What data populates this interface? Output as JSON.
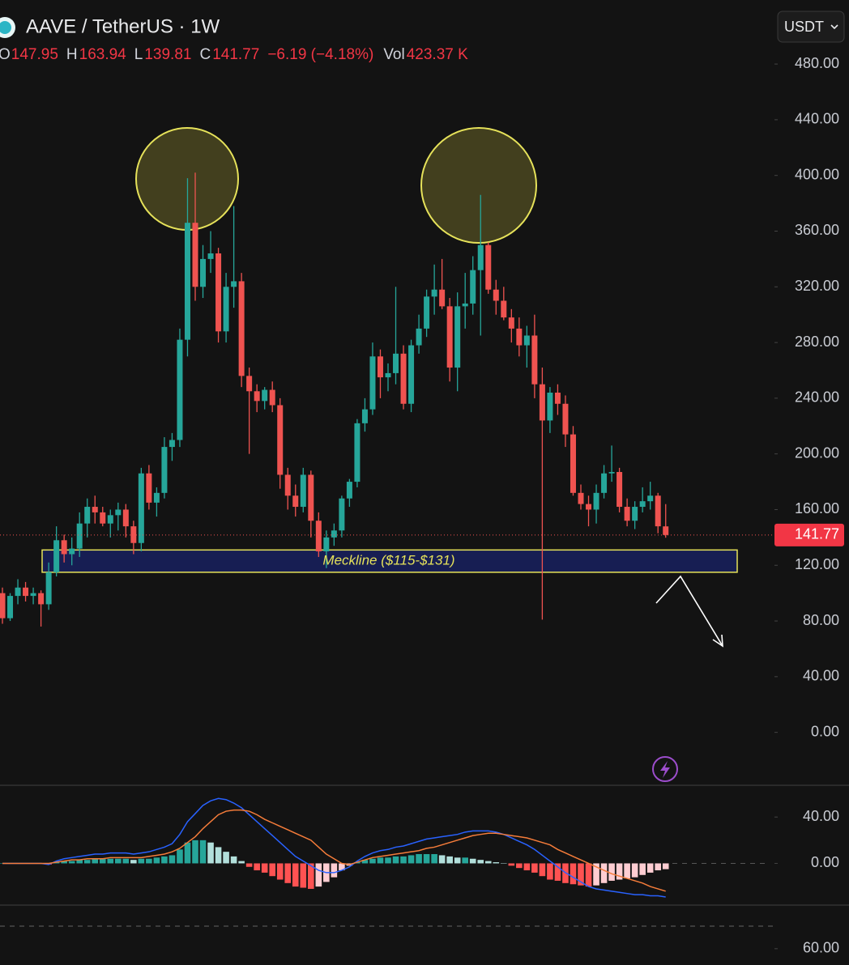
{
  "chart_data": [
    {
      "type": "candlestick",
      "title": "AAVE / TetherUS · 1W",
      "currency": "USDT",
      "legend_labels": {
        "open": "O",
        "high": "H",
        "low": "L",
        "close": "C",
        "volume": "Vol"
      },
      "change": "−6.19 (−4.18%)",
      "volume": "423.37 K",
      "up_color": "#26a69a",
      "down_color": "#ef5350",
      "ylim": [
        -38,
        526
      ],
      "yticks": [
        {
          "value": 0,
          "label": "0.00"
        },
        {
          "value": 40,
          "label": "40.00"
        },
        {
          "value": 80,
          "label": "80.00"
        },
        {
          "value": 120,
          "label": "120.00"
        },
        {
          "value": 160,
          "label": "160.00"
        },
        {
          "value": 200,
          "label": "200.00"
        },
        {
          "value": 240,
          "label": "240.00"
        },
        {
          "value": 280,
          "label": "280.00"
        },
        {
          "value": 320,
          "label": "320.00"
        },
        {
          "value": 360,
          "label": "360.00"
        },
        {
          "value": 400,
          "label": "400.00"
        },
        {
          "value": 440,
          "label": "440.00"
        },
        {
          "value": 480,
          "label": "480.00"
        }
      ],
      "annotations": [
        {
          "text": "Meckline ($115-$131)",
          "zone": [
            115,
            131
          ]
        }
      ],
      "open": [
        100,
        82,
        98,
        104,
        98,
        100,
        92,
        115,
        138,
        128,
        132,
        150,
        162,
        158,
        150,
        156,
        160,
        148,
        136,
        186,
        165,
        172,
        205,
        210,
        282,
        366,
        320,
        340,
        344,
        288,
        320,
        324,
        256,
        245,
        238,
        246,
        235,
        185,
        170,
        162,
        185,
        152,
        130,
        140,
        145,
        168,
        180,
        222,
        232,
        270,
        255,
        258,
        272,
        236,
        278,
        290,
        313,
        318,
        306,
        262,
        306,
        308,
        332,
        350,
        318,
        310,
        298,
        290,
        278,
        285,
        250,
        224,
        244,
        236,
        214,
        172,
        164,
        160,
        172,
        186,
        187,
        162,
        152,
        162,
        166,
        170,
        147.95
      ],
      "high": [
        104,
        100,
        110,
        108,
        104,
        102,
        122,
        148,
        142,
        140,
        158,
        168,
        170,
        162,
        160,
        165,
        164,
        152,
        190,
        192,
        176,
        212,
        215,
        290,
        398,
        402,
        350,
        360,
        348,
        330,
        378,
        330,
        262,
        250,
        248,
        252,
        240,
        190,
        178,
        190,
        188,
        158,
        145,
        150,
        170,
        182,
        225,
        240,
        280,
        275,
        265,
        320,
        278,
        282,
        300,
        318,
        336,
        340,
        312,
        316,
        330,
        342,
        386,
        352,
        325,
        320,
        304,
        298,
        292,
        300,
        262,
        248,
        250,
        242,
        220,
        178,
        170,
        178,
        192,
        206,
        190,
        168,
        166,
        176,
        180,
        172,
        163.94
      ],
      "low": [
        78,
        80,
        92,
        94,
        92,
        76,
        88,
        112,
        122,
        120,
        126,
        140,
        150,
        148,
        140,
        145,
        140,
        128,
        130,
        160,
        155,
        168,
        195,
        205,
        270,
        310,
        312,
        330,
        280,
        280,
        305,
        248,
        200,
        230,
        232,
        230,
        175,
        160,
        155,
        158,
        140,
        126,
        118,
        134,
        140,
        162,
        176,
        216,
        228,
        240,
        245,
        250,
        232,
        230,
        272,
        284,
        300,
        304,
        252,
        245,
        290,
        300,
        285,
        315,
        300,
        296,
        280,
        270,
        262,
        240,
        81,
        215,
        228,
        205,
        170,
        160,
        148,
        150,
        168,
        180,
        158,
        148,
        146,
        158,
        160,
        143,
        139.81
      ],
      "close": [
        82,
        98,
        104,
        98,
        100,
        92,
        115,
        138,
        128,
        132,
        150,
        162,
        158,
        150,
        156,
        160,
        148,
        136,
        186,
        165,
        172,
        205,
        210,
        282,
        366,
        320,
        340,
        344,
        288,
        320,
        324,
        256,
        245,
        238,
        246,
        235,
        185,
        170,
        162,
        185,
        152,
        130,
        140,
        145,
        168,
        180,
        222,
        232,
        270,
        255,
        258,
        272,
        236,
        278,
        290,
        313,
        318,
        306,
        262,
        306,
        308,
        332,
        350,
        318,
        310,
        298,
        290,
        278,
        285,
        250,
        224,
        244,
        236,
        214,
        172,
        164,
        160,
        172,
        186,
        187,
        162,
        152,
        162,
        166,
        170,
        148,
        141.77
      ]
    },
    {
      "type": "macd",
      "ylim": [
        -36,
        66
      ],
      "yticks": [
        {
          "value": 0,
          "label": "0.00"
        },
        {
          "value": 40,
          "label": "40.00"
        }
      ],
      "histogram_colors": [
        "#26a69a",
        "#b2dfdb",
        "#ff5252",
        "#ffcdd2"
      ],
      "histogram": [
        0,
        0,
        0,
        0,
        0,
        0,
        -1,
        1,
        2,
        2,
        3,
        3,
        4,
        4,
        4,
        4,
        4,
        3,
        4,
        4,
        5,
        6,
        7,
        12,
        18,
        20,
        20,
        18,
        14,
        10,
        6,
        2,
        -3,
        -6,
        -8,
        -11,
        -14,
        -17,
        -20,
        -21,
        -22,
        -20,
        -16,
        -12,
        -6,
        -2,
        1,
        3,
        4,
        5,
        5,
        6,
        6,
        7,
        8,
        8,
        8,
        7,
        6,
        5,
        5,
        4,
        3,
        2,
        1,
        0,
        -2,
        -4,
        -6,
        -8,
        -11,
        -14,
        -15,
        -17,
        -18,
        -19,
        -20,
        -19,
        -17,
        -15,
        -14,
        -13,
        -12,
        -10,
        -8,
        -6,
        -5
      ],
      "series": [
        {
          "color": "#2962ff",
          "values": [
            0,
            0,
            0,
            0,
            0,
            0,
            -1,
            2,
            4,
            5,
            6,
            7,
            8,
            8,
            9,
            9,
            9,
            8,
            9,
            10,
            12,
            14,
            17,
            25,
            36,
            43,
            50,
            54,
            56,
            55,
            52,
            48,
            42,
            36,
            30,
            24,
            18,
            12,
            6,
            2,
            -2,
            -6,
            -8,
            -8,
            -6,
            -3,
            2,
            6,
            9,
            11,
            12,
            14,
            15,
            17,
            19,
            21,
            22,
            23,
            24,
            25,
            27,
            28,
            28,
            28,
            27,
            25,
            22,
            19,
            16,
            12,
            7,
            2,
            -3,
            -8,
            -12,
            -16,
            -20,
            -22,
            -23,
            -24,
            -25,
            -26,
            -27,
            -27,
            -28,
            -28,
            -29
          ]
        },
        {
          "color": "#f57c3a",
          "values": [
            0,
            0,
            0,
            0,
            0,
            0,
            0,
            1,
            2,
            3,
            3,
            4,
            4,
            4,
            5,
            5,
            5,
            5,
            5,
            6,
            7,
            8,
            10,
            13,
            18,
            23,
            30,
            36,
            42,
            45,
            46,
            46,
            45,
            42,
            38,
            35,
            32,
            29,
            26,
            23,
            20,
            14,
            8,
            4,
            0,
            -1,
            1,
            3,
            5,
            6,
            7,
            8,
            9,
            10,
            11,
            13,
            14,
            16,
            18,
            20,
            22,
            24,
            25,
            26,
            26,
            25,
            24,
            23,
            22,
            20,
            18,
            16,
            12,
            9,
            6,
            3,
            0,
            -3,
            -6,
            -9,
            -11,
            -13,
            -15,
            -17,
            -20,
            -22,
            -24
          ]
        }
      ]
    },
    {
      "type": "rsi",
      "ylim": [
        53,
        78
      ],
      "yticks": [
        {
          "value": 60,
          "label": "60.00"
        }
      ]
    }
  ]
}
